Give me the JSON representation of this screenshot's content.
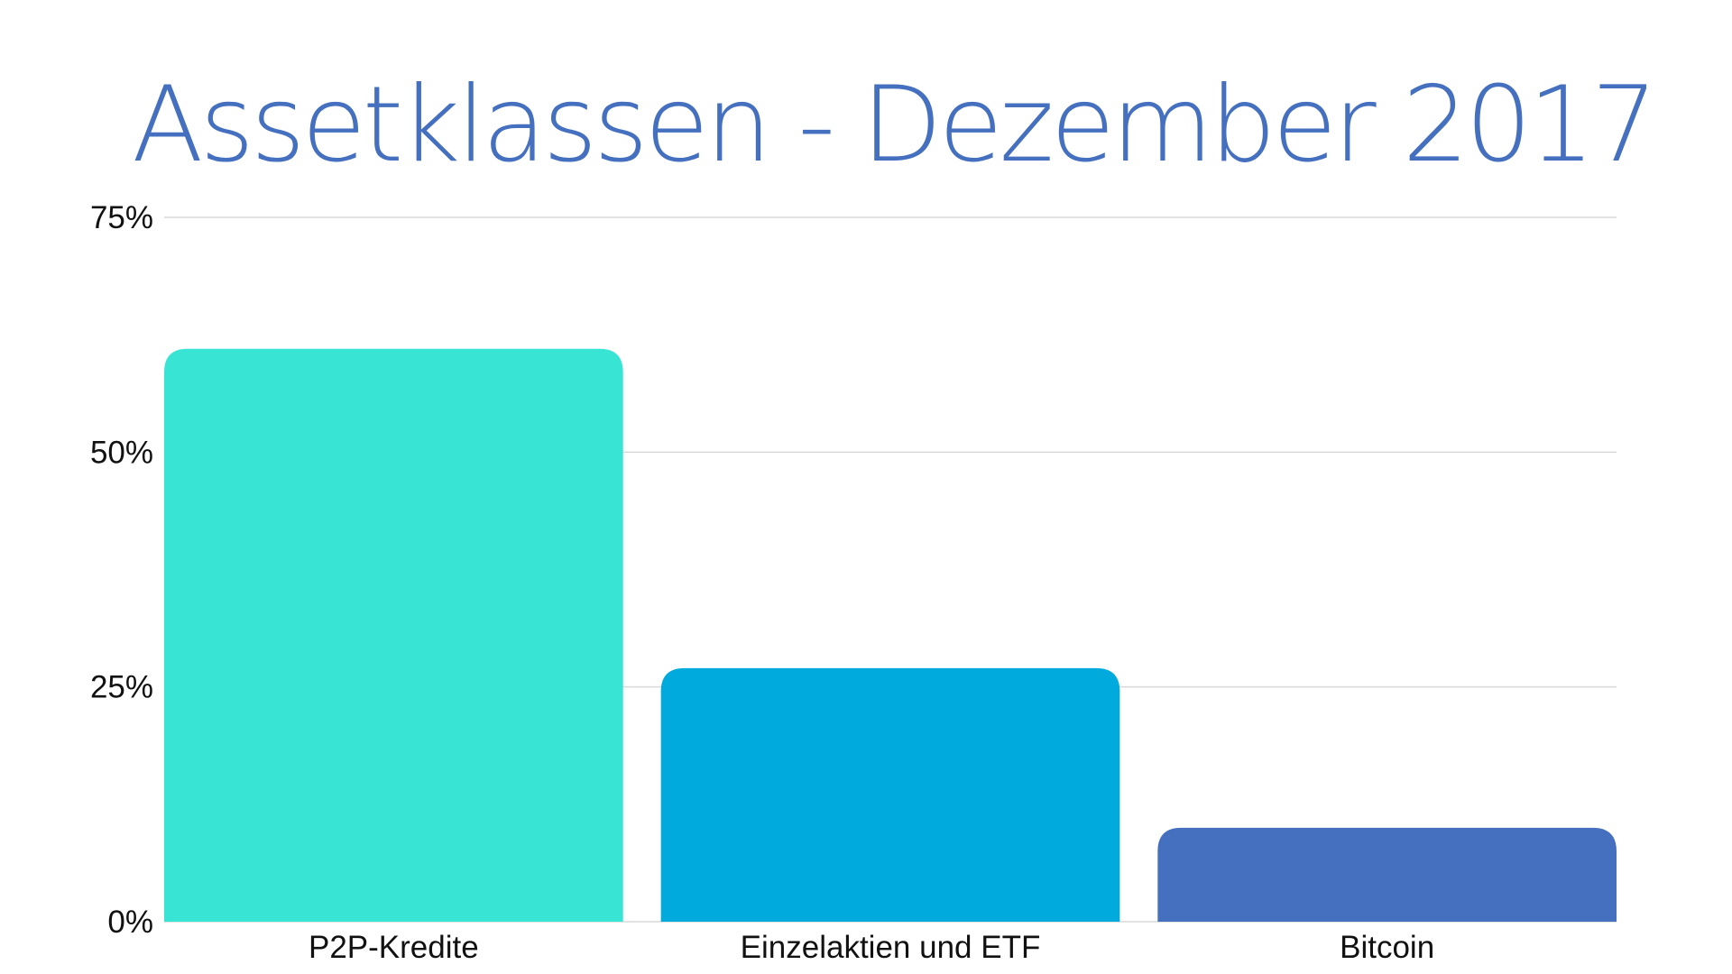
{
  "chart_data": {
    "type": "bar",
    "title": "Assetklassen - Dezember 2017",
    "xlabel": "",
    "ylabel": "",
    "categories": [
      "P2P-Kredite",
      "Einzelaktien und ETF",
      "Bitcoin"
    ],
    "values": [
      61,
      27,
      10
    ],
    "bar_colors": [
      "#38e4d4",
      "#00aadd",
      "#4570bf"
    ],
    "title_color": "#4570bf",
    "ylim": [
      0,
      75
    ],
    "yticks": [
      0,
      25,
      50,
      75
    ],
    "ytick_labels": [
      "0%",
      "25%",
      "50%",
      "75%"
    ],
    "grid": true,
    "legend": "none"
  }
}
